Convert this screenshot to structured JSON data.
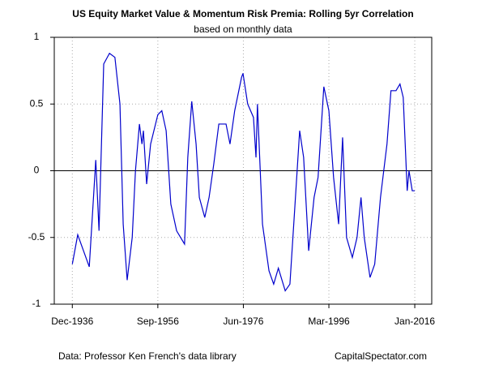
{
  "chart_data": {
    "type": "line",
    "title": "US Equity Market Value & Momentum Risk Premia: Rolling 5yr Correlation",
    "subtitle": "based on monthly data",
    "footer_left": "Data: Professor Ken French's data library",
    "footer_right": "CapitalSpectator.com",
    "x": [
      "1936-12",
      "1938-03",
      "1940-11",
      "1942-05",
      "1943-02",
      "1944-03",
      "1945-07",
      "1946-10",
      "1947-12",
      "1948-09",
      "1949-08",
      "1950-10",
      "1951-07",
      "1952-06",
      "1953-01",
      "1953-05",
      "1954-02",
      "1955-01",
      "1956-09",
      "1957-08",
      "1958-08",
      "1959-09",
      "1961-01",
      "1962-11",
      "1963-08",
      "1964-07",
      "1965-07",
      "1966-04",
      "1967-07",
      "1968-07",
      "1969-08",
      "1970-10",
      "1972-06",
      "1973-05",
      "1974-06",
      "1976-01",
      "1976-05",
      "1977-06",
      "1978-10",
      "1979-05",
      "1979-09",
      "1980-11",
      "1982-05",
      "1983-06",
      "1984-07",
      "1986-02",
      "1987-03",
      "1988-04",
      "1989-06",
      "1990-05",
      "1991-07",
      "1992-10",
      "1993-09",
      "1995-01",
      "1996-03",
      "1997-04",
      "1998-06",
      "1999-05",
      "2000-04",
      "2001-08",
      "2002-09",
      "2003-08",
      "2004-05",
      "2005-09",
      "2006-10",
      "2008-02",
      "2009-08",
      "2010-07",
      "2011-09",
      "2012-08",
      "2013-05",
      "2014-04",
      "2014-09",
      "2015-06",
      "2016-01"
    ],
    "series": [
      {
        "name": "Rolling 5yr Correlation",
        "color": "#0000cc",
        "values": [
          -0.7,
          -0.48,
          -0.72,
          0.08,
          -0.45,
          0.8,
          0.88,
          0.85,
          0.5,
          -0.4,
          -0.82,
          -0.5,
          0,
          0.35,
          0.2,
          0.3,
          -0.1,
          0.2,
          0.42,
          0.45,
          0.3,
          -0.25,
          -0.45,
          -0.55,
          0.1,
          0.52,
          0.2,
          -0.2,
          -0.35,
          -0.2,
          0.05,
          0.35,
          0.35,
          0.2,
          0.45,
          0.7,
          0.73,
          0.5,
          0.4,
          0.1,
          0.5,
          -0.4,
          -0.75,
          -0.85,
          -0.73,
          -0.9,
          -0.85,
          -0.3,
          0.3,
          0.1,
          -0.6,
          -0.2,
          -0.05,
          0.63,
          0.45,
          -0.05,
          -0.4,
          0.25,
          -0.5,
          -0.65,
          -0.5,
          -0.2,
          -0.5,
          -0.8,
          -0.7,
          -0.2,
          0.2,
          0.6,
          0.6,
          0.65,
          0.55,
          -0.15,
          0,
          -0.15,
          -0.15
        ]
      }
    ],
    "xlim": [
      "1932-10",
      "2019-12"
    ],
    "xticks": [
      {
        "value": "1936-12",
        "label": "Dec-1936"
      },
      {
        "value": "1956-09",
        "label": "Sep-1956"
      },
      {
        "value": "1976-06",
        "label": "Jun-1976"
      },
      {
        "value": "1996-03",
        "label": "Mar-1996"
      },
      {
        "value": "2016-01",
        "label": "Jan-2016"
      }
    ],
    "ylim": [
      -1,
      1
    ],
    "yticks": [
      -1,
      -0.5,
      0,
      0.5,
      1
    ],
    "reference_line": 0,
    "grid": true
  }
}
